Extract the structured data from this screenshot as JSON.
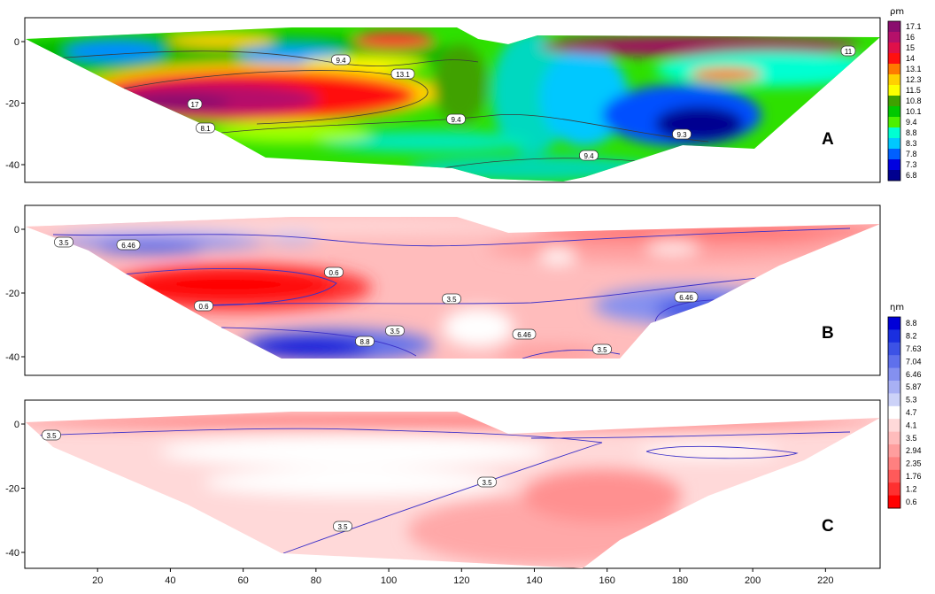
{
  "chart_data": [
    {
      "type": "heatmap",
      "panel": "A",
      "x_range": [
        0,
        235
      ],
      "y_range": [
        -45,
        3
      ],
      "y_ticks": [
        0,
        -20,
        -40
      ],
      "colorbar": {
        "title": "ρm",
        "levels": [
          "17.1",
          "16",
          "15",
          "14",
          "13.1",
          "12.3",
          "11.5",
          "10.8",
          "10.1",
          "9.4",
          "8.8",
          "8.3",
          "7.8",
          "7.3",
          "6.8"
        ],
        "colors": [
          "#8a0e6e",
          "#b5106a",
          "#e0104a",
          "#ff1010",
          "#ff7a00",
          "#ffd000",
          "#fcff00",
          "#3fa100",
          "#00c800",
          "#4cf000",
          "#00ffd2",
          "#00c8ff",
          "#0060ff",
          "#0000e0",
          "#000090"
        ]
      },
      "contour_labels": [
        "9.4",
        "13.1",
        "17",
        "8.1",
        "9.4",
        "9.4",
        "9.3",
        "11"
      ],
      "region": {
        "surface": [
          [
            2,
            1
          ],
          [
            62,
            3
          ],
          [
            120,
            3
          ],
          [
            128,
            -1
          ],
          [
            134,
            1
          ],
          [
            233,
            2
          ]
        ],
        "bottom": [
          [
            2,
            1
          ],
          [
            50,
            -25
          ],
          [
            75,
            -40
          ],
          [
            130,
            -45
          ],
          [
            160,
            -38
          ],
          [
            233,
            2
          ]
        ]
      }
    },
    {
      "type": "heatmap",
      "panel": "B",
      "x_range": [
        0,
        235
      ],
      "y_range": [
        -45,
        3
      ],
      "y_ticks": [
        0,
        -20,
        -40
      ],
      "colorbar": {
        "title": "ηm",
        "levels": [
          "8.8",
          "8.2",
          "7.63",
          "7.04",
          "6.46",
          "5.87",
          "5.3",
          "4.7",
          "4.1",
          "3.5",
          "2.94",
          "2.35",
          "1.76",
          "1.2",
          "0.6"
        ],
        "colors": [
          "#0000d8",
          "#1a2fe0",
          "#3c52e6",
          "#5f70ec",
          "#8490f0",
          "#a8b0f4",
          "#ccd2f8",
          "#ffffff",
          "#ffd9d9",
          "#ffbcbc",
          "#ff9e9e",
          "#ff8080",
          "#ff5a5a",
          "#ff3030",
          "#ff0000"
        ]
      },
      "contour_labels": [
        "3.5",
        "6.46",
        "0.6",
        "0.6",
        "3.5",
        "6.46",
        "8.8",
        "3.5",
        "6.46",
        "3.5"
      ]
    },
    {
      "type": "heatmap",
      "panel": "C",
      "x_range": [
        0,
        235
      ],
      "y_range": [
        -45,
        3
      ],
      "y_ticks": [
        0,
        -20,
        -40
      ],
      "x_ticks": [
        20,
        40,
        60,
        80,
        100,
        120,
        140,
        160,
        180,
        200,
        220
      ],
      "contour_labels": [
        "3.5",
        "3.5",
        "3.5"
      ]
    }
  ]
}
